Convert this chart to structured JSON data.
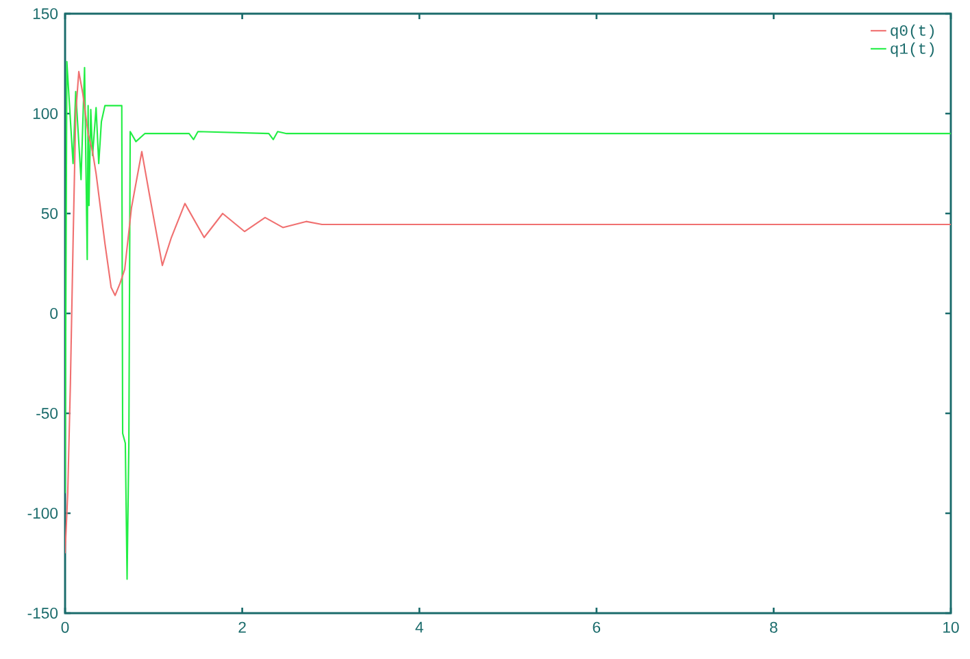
{
  "chart_data": {
    "type": "line",
    "xlim": [
      0,
      10
    ],
    "ylim": [
      -150,
      150
    ],
    "xticks": [
      0,
      2,
      4,
      6,
      8,
      10
    ],
    "yticks": [
      -150,
      -100,
      -50,
      0,
      50,
      100,
      150
    ],
    "grid": false,
    "legend": "top right",
    "marker": "none",
    "line_style": "solid",
    "series": [
      {
        "name": "q0(t)",
        "color": "#f07070",
        "x": [
          0,
          0.03,
          0.06,
          0.09,
          0.12,
          0.155,
          0.2,
          0.26,
          0.31,
          0.35,
          0.45,
          0.52,
          0.565,
          0.62,
          0.673,
          0.75,
          0.866,
          0.95,
          1.098,
          1.2,
          1.353,
          1.57,
          1.779,
          2.026,
          2.258,
          2.459,
          2.722,
          2.9,
          10
        ],
        "values": [
          -120,
          -90,
          -35,
          35,
          100,
          121,
          110,
          90,
          81,
          70,
          35,
          13,
          9,
          15,
          22,
          53,
          81,
          60,
          24,
          38,
          55,
          38,
          50,
          41,
          48,
          43,
          46,
          44.5,
          44.5
        ]
      },
      {
        "name": "q1(t)",
        "color": "#22ee44",
        "x": [
          0,
          0.02,
          0.09,
          0.12,
          0.18,
          0.22,
          0.25,
          0.26,
          0.27,
          0.29,
          0.31,
          0.35,
          0.38,
          0.41,
          0.45,
          0.464,
          0.619,
          0.64,
          0.65,
          0.68,
          0.7,
          0.72,
          0.735,
          0.8,
          0.9,
          1.4,
          1.45,
          1.5,
          2.3,
          2.35,
          2.4,
          2.5,
          10
        ],
        "values": [
          -90,
          126,
          75,
          111,
          67,
          123,
          27,
          104,
          54,
          102,
          79,
          103,
          75,
          96,
          104,
          104,
          104,
          104,
          -60,
          -65,
          -133,
          -65,
          91,
          86,
          90,
          90,
          87,
          91,
          90,
          87,
          91,
          90,
          90
        ]
      }
    ]
  }
}
